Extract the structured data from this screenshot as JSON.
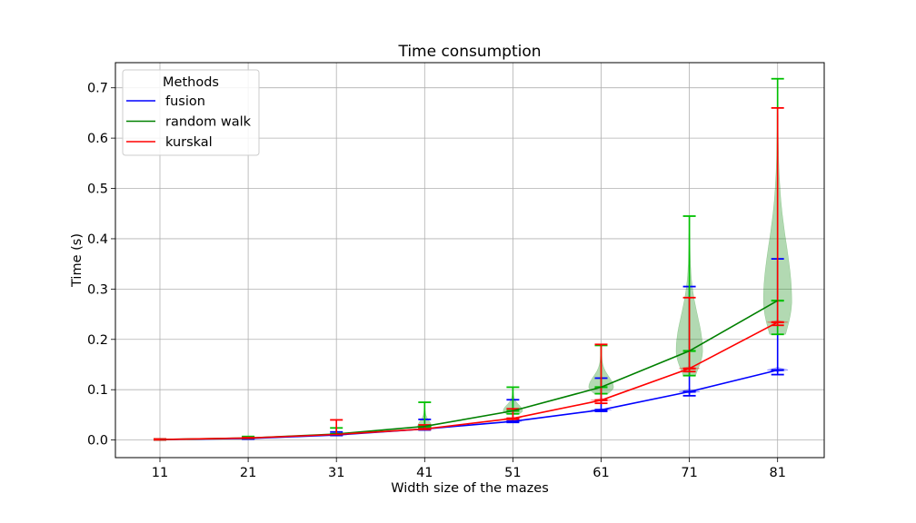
{
  "chart_data": {
    "type": "line",
    "title": "Time consumption",
    "xlabel": "Width size of the mazes",
    "ylabel": "Time (s)",
    "categories": [
      "11",
      "21",
      "31",
      "41",
      "51",
      "61",
      "71",
      "81"
    ],
    "ylim": [
      -0.035,
      0.75
    ],
    "yticks": [
      "0.0",
      "0.1",
      "0.2",
      "0.3",
      "0.4",
      "0.5",
      "0.6",
      "0.7"
    ],
    "ytick_values": [
      0.0,
      0.1,
      0.2,
      0.3,
      0.4,
      0.5,
      0.6,
      0.7
    ],
    "grid": true,
    "legend": {
      "title": "Methods",
      "placement": "top-left"
    },
    "series": [
      {
        "name": "fusion",
        "color": "#0000ff",
        "values": [
          0.001,
          0.003,
          0.01,
          0.022,
          0.037,
          0.06,
          0.096,
          0.139
        ],
        "min": [
          0.0005,
          0.002,
          0.009,
          0.02,
          0.035,
          0.057,
          0.088,
          0.13
        ],
        "max": [
          0.002,
          0.005,
          0.016,
          0.041,
          0.08,
          0.123,
          0.305,
          0.36
        ]
      },
      {
        "name": "random walk",
        "color": "#008000",
        "values": [
          0.001,
          0.004,
          0.012,
          0.027,
          0.058,
          0.105,
          0.177,
          0.277
        ],
        "min": [
          0.0005,
          0.003,
          0.011,
          0.024,
          0.052,
          0.092,
          0.128,
          0.21
        ],
        "max": [
          0.002,
          0.007,
          0.024,
          0.075,
          0.105,
          0.188,
          0.445,
          0.718
        ]
      },
      {
        "name": "kurskal",
        "color": "#ff0000",
        "values": [
          0.001,
          0.004,
          0.011,
          0.022,
          0.043,
          0.079,
          0.142,
          0.234
        ],
        "min": [
          0.0005,
          0.003,
          0.01,
          0.021,
          0.041,
          0.073,
          0.136,
          0.228
        ],
        "max": [
          0.002,
          0.005,
          0.04,
          0.03,
          0.062,
          0.19,
          0.283,
          0.66
        ]
      }
    ]
  }
}
